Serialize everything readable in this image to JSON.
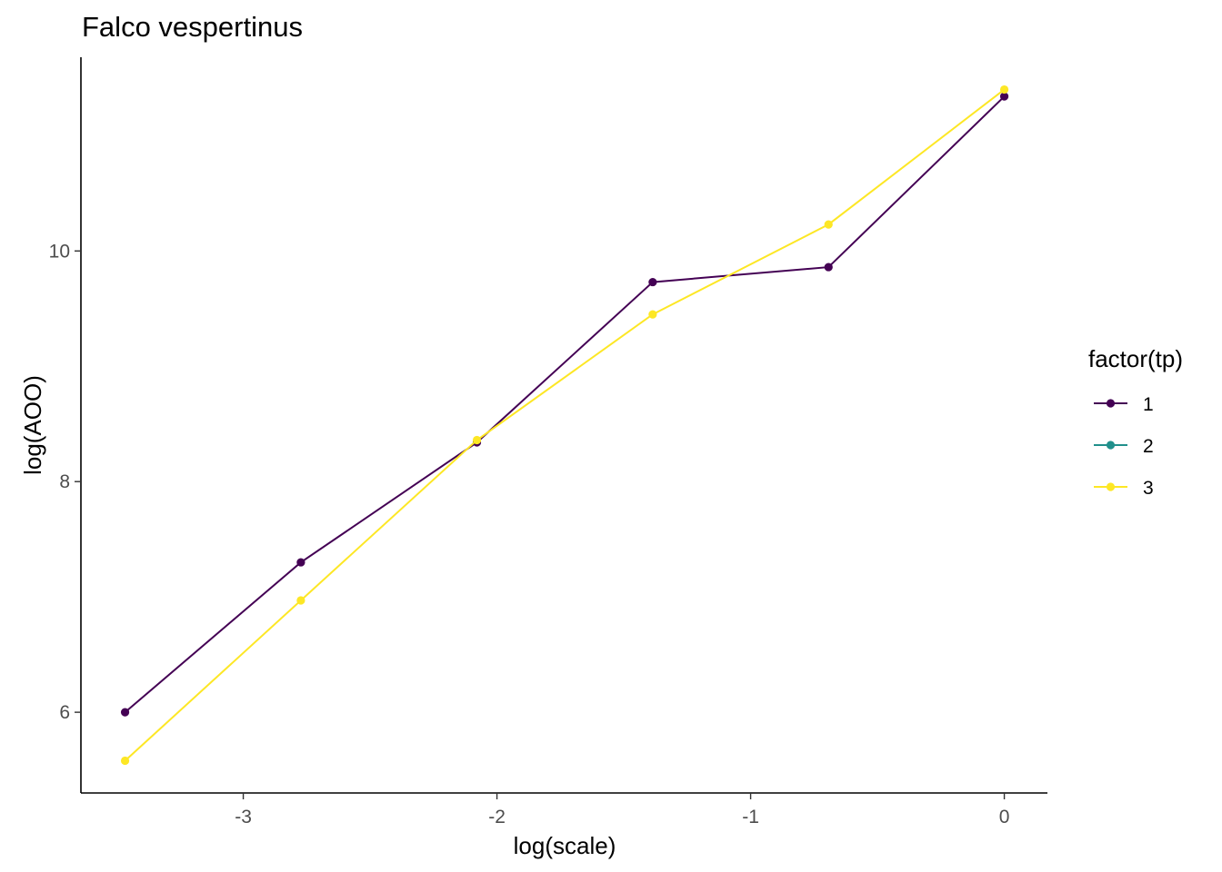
{
  "chart_data": {
    "type": "line",
    "title": "Falco vespertinus",
    "xlabel": "log(scale)",
    "ylabel": "log(AOO)",
    "xlim": [
      -3.64,
      0.17
    ],
    "ylim": [
      5.3,
      11.68
    ],
    "x_ticks": [
      {
        "value": -3,
        "label": "-3"
      },
      {
        "value": -2,
        "label": "-2"
      },
      {
        "value": -1,
        "label": "-1"
      },
      {
        "value": 0,
        "label": "0"
      }
    ],
    "y_ticks": [
      {
        "value": 6,
        "label": "6"
      },
      {
        "value": 8,
        "label": "8"
      },
      {
        "value": 10,
        "label": "10"
      }
    ],
    "grid": false,
    "legend": {
      "title": "factor(tp)",
      "position": "right"
    },
    "series": [
      {
        "name": "1",
        "color": "#440154",
        "points": [
          [
            -3.466,
            6.0
          ],
          [
            -2.773,
            7.3
          ],
          [
            -2.079,
            8.34
          ],
          [
            -1.386,
            9.73
          ],
          [
            -0.693,
            9.86
          ],
          [
            0.0,
            11.34
          ]
        ]
      },
      {
        "name": "2",
        "color": "#21908C",
        "points": []
      },
      {
        "name": "3",
        "color": "#FDE725",
        "points": [
          [
            -3.466,
            5.58
          ],
          [
            -2.773,
            6.97
          ],
          [
            -2.079,
            8.36
          ],
          [
            -1.386,
            9.45
          ],
          [
            -0.693,
            10.23
          ],
          [
            0.0,
            11.4
          ]
        ]
      }
    ]
  }
}
